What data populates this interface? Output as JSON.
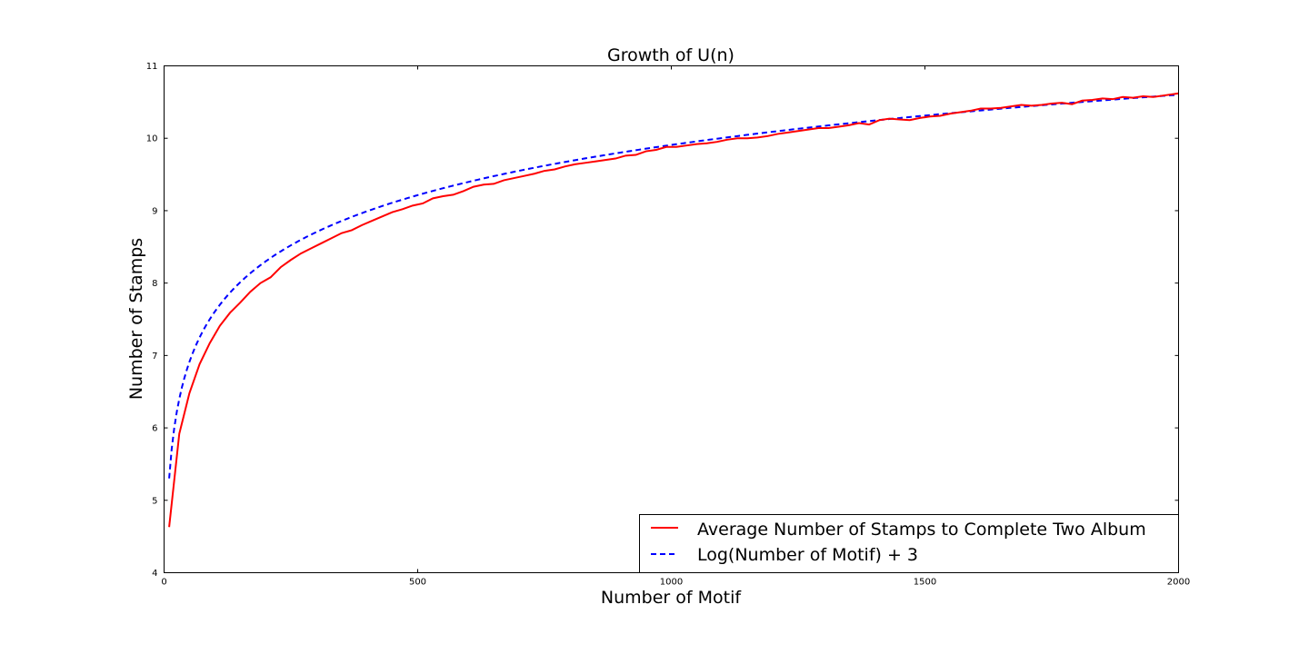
{
  "chart_data": {
    "type": "line",
    "title": "Growth of U(n)",
    "xlabel": "Number of Motif",
    "ylabel": "Number of Stamps",
    "xlim": [
      0,
      2000
    ],
    "ylim": [
      4,
      11
    ],
    "x_ticks": [
      "0",
      "500",
      "1000",
      "1500",
      "2000"
    ],
    "y_ticks": [
      "4",
      "5",
      "6",
      "7",
      "8",
      "9",
      "10",
      "11"
    ],
    "grid": false,
    "legend_position": "lower-right",
    "series": [
      {
        "name": "Average Number of Stamps to Complete Two Album",
        "color": "#ff0000",
        "style": "solid",
        "x": [
          10,
          30,
          50,
          70,
          90,
          110,
          130,
          150,
          170,
          190,
          210,
          230,
          250,
          270,
          290,
          310,
          330,
          350,
          370,
          390,
          410,
          430,
          450,
          470,
          490,
          510,
          530,
          550,
          570,
          590,
          610,
          630,
          650,
          670,
          690,
          710,
          730,
          750,
          770,
          790,
          810,
          830,
          850,
          870,
          890,
          910,
          930,
          950,
          970,
          990,
          1010,
          1030,
          1050,
          1070,
          1090,
          1110,
          1130,
          1150,
          1170,
          1190,
          1210,
          1230,
          1250,
          1270,
          1290,
          1310,
          1330,
          1350,
          1370,
          1390,
          1410,
          1430,
          1450,
          1470,
          1490,
          1510,
          1530,
          1550,
          1570,
          1590,
          1610,
          1630,
          1650,
          1670,
          1690,
          1710,
          1730,
          1750,
          1770,
          1790,
          1810,
          1830,
          1850,
          1870,
          1890,
          1910,
          1930,
          1950,
          1970,
          1990,
          2000
        ],
        "y": [
          4.63,
          5.92,
          6.48,
          6.88,
          7.17,
          7.41,
          7.59,
          7.73,
          7.88,
          8.0,
          8.08,
          8.22,
          8.32,
          8.41,
          8.48,
          8.55,
          8.62,
          8.69,
          8.73,
          8.8,
          8.86,
          8.92,
          8.98,
          9.02,
          9.07,
          9.1,
          9.17,
          9.2,
          9.22,
          9.27,
          9.33,
          9.36,
          9.37,
          9.42,
          9.45,
          9.48,
          9.51,
          9.55,
          9.57,
          9.61,
          9.64,
          9.66,
          9.68,
          9.7,
          9.72,
          9.76,
          9.77,
          9.82,
          9.84,
          9.88,
          9.88,
          9.9,
          9.92,
          9.93,
          9.95,
          9.98,
          10.0,
          10.0,
          10.01,
          10.03,
          10.06,
          10.08,
          10.1,
          10.12,
          10.14,
          10.14,
          10.16,
          10.18,
          10.21,
          10.19,
          10.25,
          10.27,
          10.26,
          10.25,
          10.28,
          10.3,
          10.31,
          10.34,
          10.36,
          10.38,
          10.41,
          10.41,
          10.42,
          10.44,
          10.46,
          10.45,
          10.46,
          10.48,
          10.49,
          10.47,
          10.52,
          10.53,
          10.55,
          10.54,
          10.57,
          10.56,
          10.58,
          10.57,
          10.59,
          10.61,
          10.62
        ]
      },
      {
        "name": "Log(Number of Motif) + 3",
        "color": "#0000ff",
        "style": "dashed",
        "function": "ln(x) + 3",
        "x_range": [
          10,
          2000
        ]
      }
    ]
  }
}
